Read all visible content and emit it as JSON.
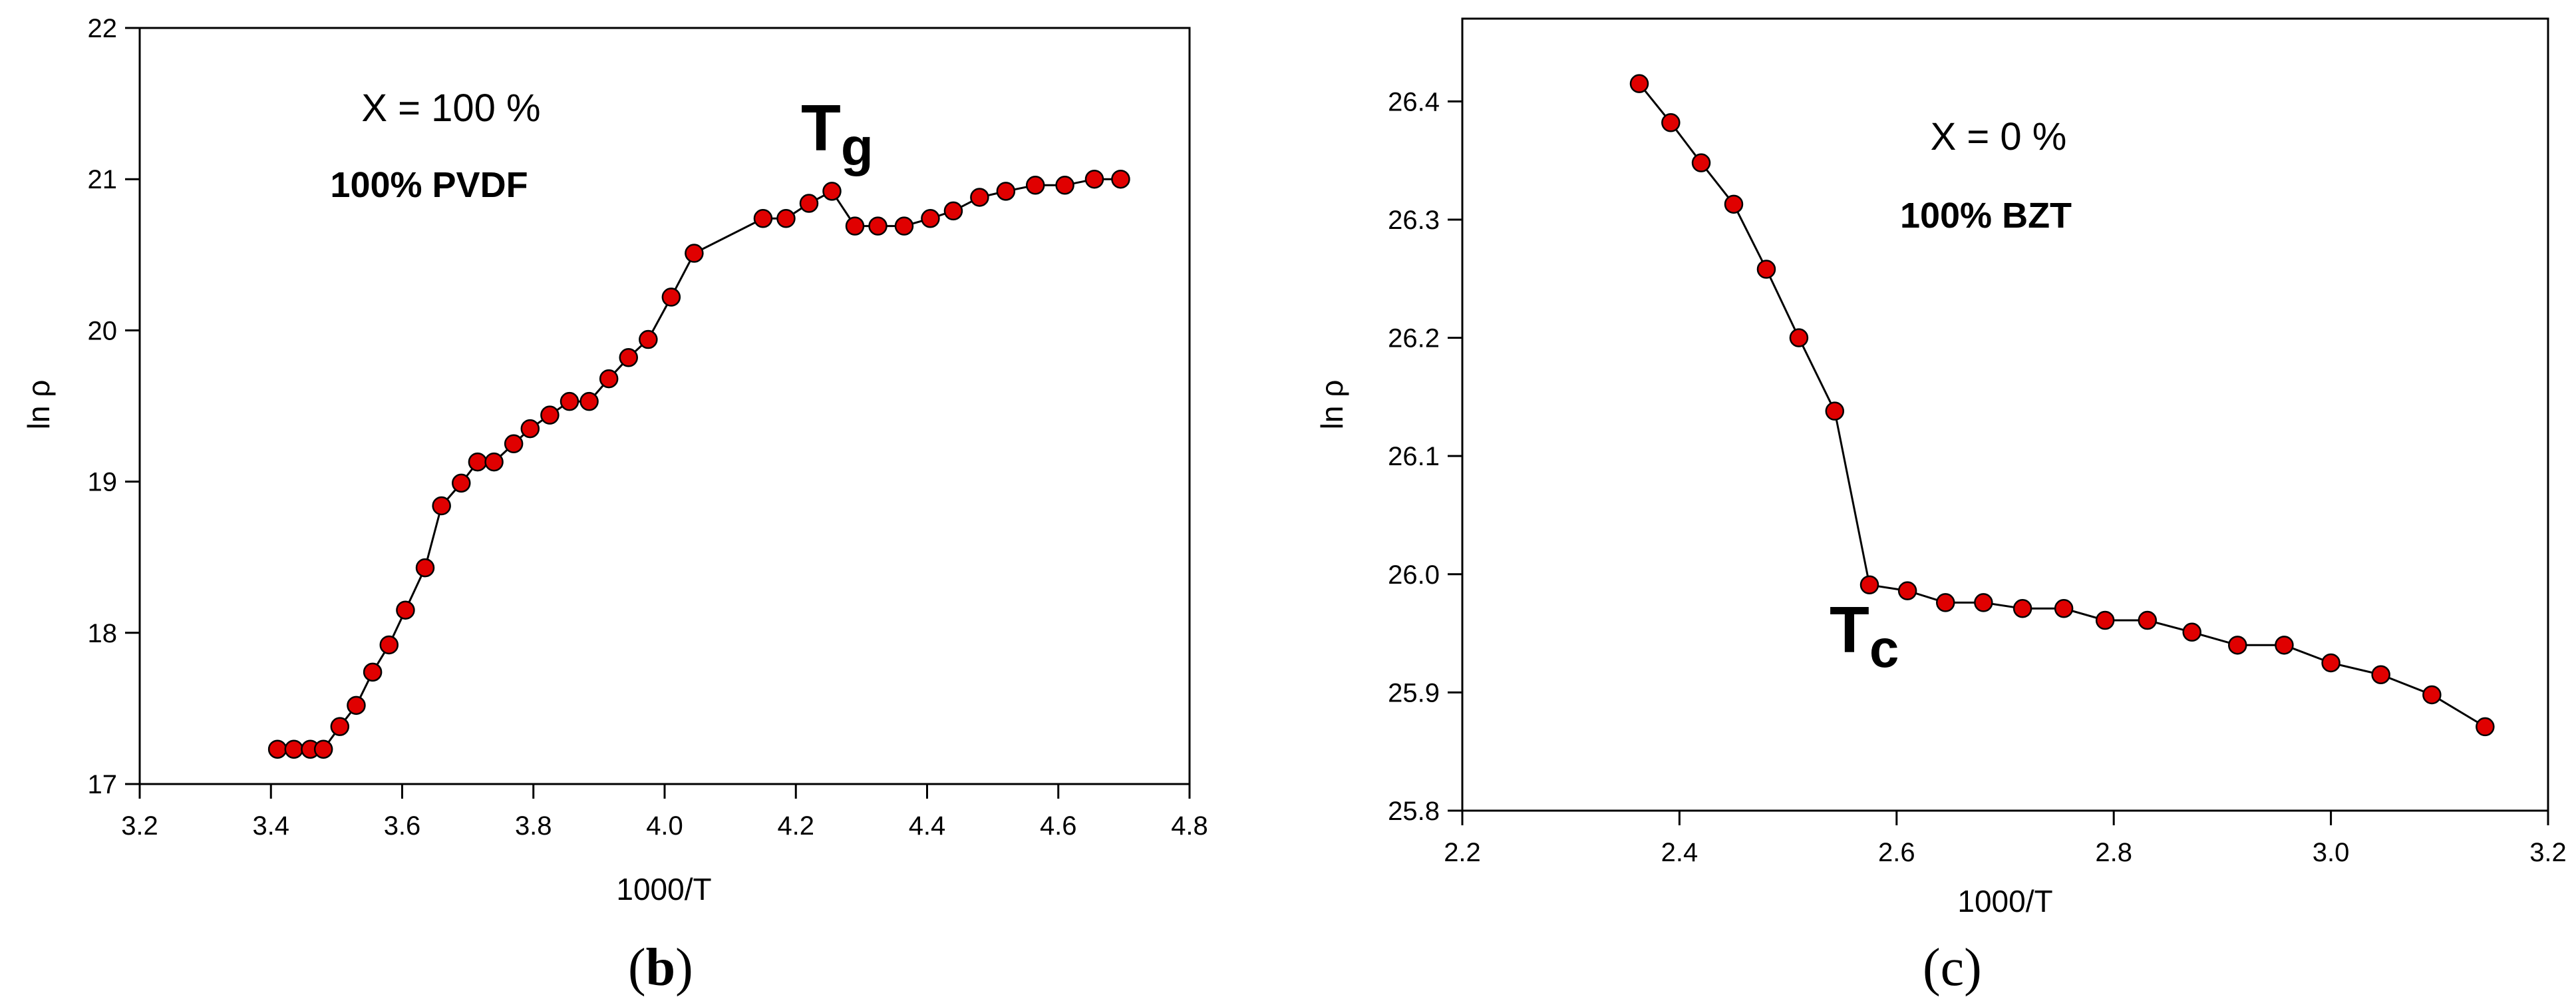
{
  "chart_data": [
    {
      "type": "line",
      "panel_label": "b",
      "xlabel": "1000/T",
      "ylabel": "ln ρ",
      "xlim": [
        3.2,
        4.8
      ],
      "ylim": [
        17,
        22
      ],
      "xticks": [
        "3.2",
        "3.4",
        "3.6",
        "3.8",
        "4.0",
        "4.2",
        "4.4",
        "4.6",
        "4.8"
      ],
      "yticks": [
        "17",
        "18",
        "19",
        "20",
        "21",
        "22"
      ],
      "annotations": {
        "composition": "X = 100 %",
        "material": "100% PVDF",
        "transition_main": "T",
        "transition_sub": "g"
      },
      "marker_color": "#e00000",
      "line_color": "#000000",
      "series": [
        {
          "x": [
            3.41,
            3.435,
            3.46,
            3.48,
            3.505,
            3.53,
            3.555,
            3.58,
            3.605,
            3.635,
            3.66,
            3.69,
            3.715,
            3.74,
            3.77,
            3.795,
            3.825,
            3.855,
            3.885,
            3.915,
            3.945,
            3.975,
            4.01,
            4.045,
            4.15,
            4.185,
            4.22,
            4.255,
            4.29,
            4.325,
            4.365,
            4.405,
            4.44,
            4.48,
            4.52,
            4.565,
            4.61,
            4.655,
            4.695
          ],
          "y": [
            17.23,
            17.23,
            17.23,
            17.23,
            17.38,
            17.52,
            17.74,
            17.92,
            18.15,
            18.43,
            18.84,
            18.99,
            19.13,
            19.13,
            19.25,
            19.35,
            19.44,
            19.53,
            19.53,
            19.68,
            19.82,
            19.94,
            20.22,
            20.51,
            20.74,
            20.74,
            20.84,
            20.92,
            20.69,
            20.69,
            20.69,
            20.74,
            20.79,
            20.88,
            20.92,
            20.96,
            20.96,
            21.0,
            21.0
          ]
        }
      ]
    },
    {
      "type": "line",
      "panel_label": "c",
      "xlabel": "1000/T",
      "ylabel": "ln ρ",
      "xlim": [
        2.2,
        3.2
      ],
      "ylim": [
        25.8,
        26.47
      ],
      "xticks": [
        "2.2",
        "2.4",
        "2.6",
        "2.8",
        "3.0",
        "3.2"
      ],
      "yticks": [
        "25.8",
        "25.9",
        "26.0",
        "26.1",
        "26.2",
        "26.3",
        "26.4"
      ],
      "annotations": {
        "composition": "X = 0 %",
        "material": "100% BZT",
        "transition_main": "T",
        "transition_sub": "c"
      },
      "marker_color": "#e00000",
      "line_color": "#000000",
      "series": [
        {
          "x": [
            2.363,
            2.392,
            2.42,
            2.45,
            2.48,
            2.51,
            2.543,
            2.575,
            2.61,
            2.645,
            2.68,
            2.716,
            2.754,
            2.792,
            2.831,
            2.872,
            2.914,
            2.957,
            3.0,
            3.046,
            3.093,
            3.142
          ],
          "y": [
            26.415,
            26.382,
            26.348,
            26.313,
            26.258,
            26.2,
            26.138,
            25.991,
            25.986,
            25.976,
            25.976,
            25.971,
            25.971,
            25.961,
            25.961,
            25.951,
            25.94,
            25.94,
            25.925,
            25.915,
            25.898,
            25.871
          ]
        }
      ]
    }
  ]
}
